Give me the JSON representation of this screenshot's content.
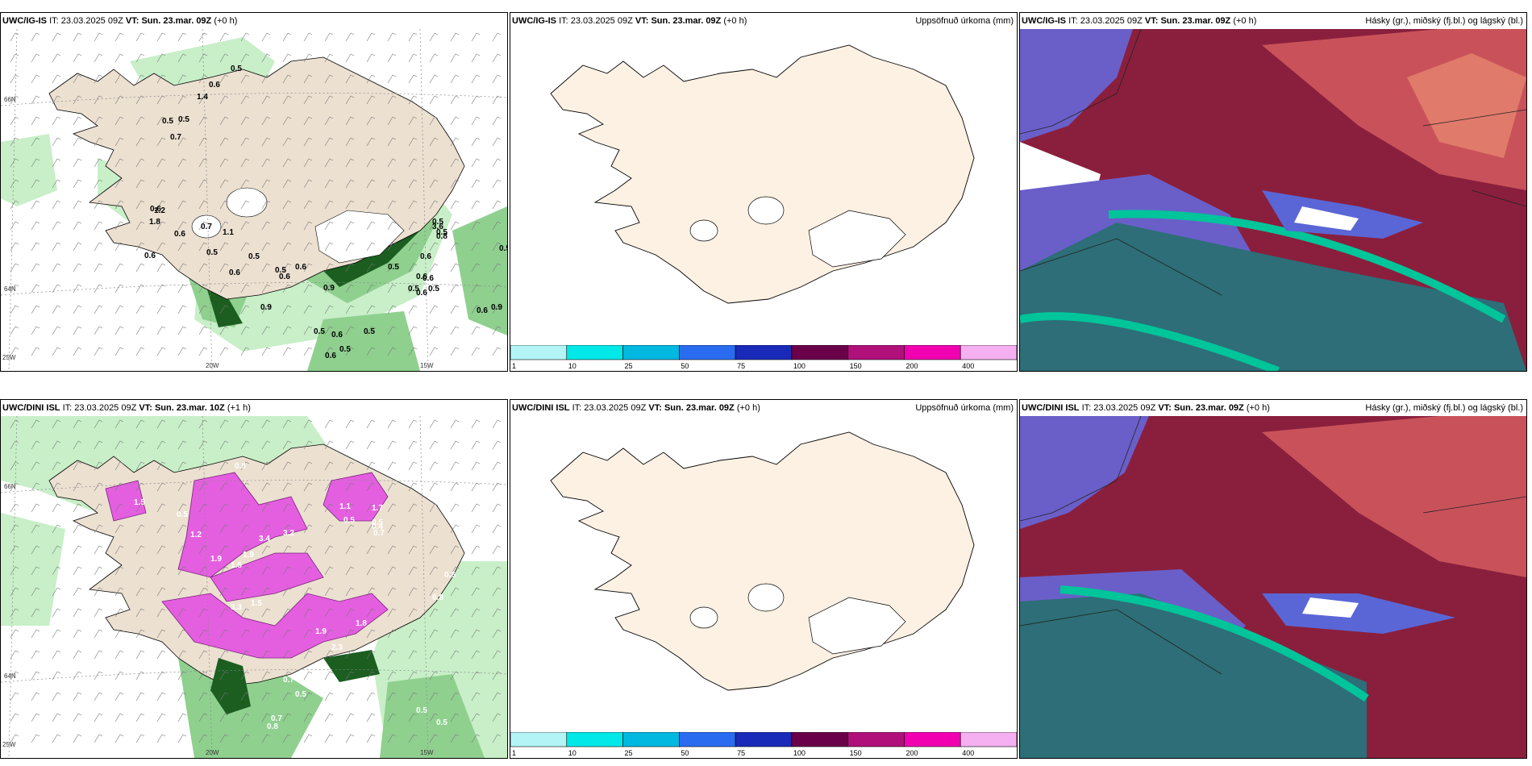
{
  "rows": [
    {
      "model": "UWC/IG-IS",
      "it_label": "IT:",
      "it_value": "23.03.2025 09Z",
      "vt_label": "VT:",
      "vt_value": "Sun. 23.mar. 09Z",
      "lead": "(+0 h)"
    },
    {
      "model": "UWC/DINI ISL",
      "it_label": "IT:",
      "it_value": "23.03.2025 09Z",
      "vt_label": "VT:",
      "vt_value": "Sun. 23.mar. 10Z",
      "lead": "(+1 h)",
      "lead_mid": "(+0 h)",
      "vt_value_mid": "Sun. 23.mar. 09Z"
    }
  ],
  "precip_title": "Uppsöfnuð úrkoma (mm)",
  "cloud_title": "Hásky (gr.), miðský (fj.bl.) og lágský (bl.)",
  "legend": {
    "ticks": [
      "1",
      "10",
      "25",
      "50",
      "75",
      "100",
      "150",
      "200",
      "400"
    ],
    "colors": [
      "#b3f5f7",
      "#00e8e8",
      "#00b8e0",
      "#2a6cf0",
      "#1a2ab8",
      "#6a004a",
      "#b0107a",
      "#f000b0",
      "#f4b0f0"
    ]
  },
  "grid_labels": {
    "lat66": "66N",
    "lat64": "64N",
    "lon20": "20W",
    "lon15": "15W",
    "lon25": "25W"
  },
  "top_values": [
    "0.5",
    "0.6",
    "1.4",
    "0.5",
    "0.5",
    "0.7",
    "1.2",
    "0.6",
    "1.8",
    "0.7",
    "1.1",
    "0.6",
    "0.6",
    "0.5",
    "0.6",
    "0.5",
    "0.9",
    "0.6",
    "0.5",
    "0.6",
    "0.9",
    "0.6",
    "0.5",
    "0.6",
    "0.5",
    "0.6",
    "0.5",
    "0.5",
    "0.6",
    "0.5",
    "3.6",
    "0.8",
    "0.5",
    "0.6",
    "0.9",
    "0.5",
    "0.6",
    "0.5",
    "0.6",
    "0.5"
  ],
  "bottom_values": [
    "0.8",
    "1.5",
    "0.5",
    "1.2",
    "3.4",
    "1.9",
    "3.2",
    "1.5",
    "1.9",
    "3.3",
    "1.5",
    "2.3",
    "1.9",
    "1.8",
    "1.1",
    "1.7",
    "0.5",
    "0.5",
    "0.7",
    "0.4",
    "0.6",
    "0.8",
    "0.7",
    "0.5",
    "0.5",
    "0.5",
    "0.7",
    "0.8"
  ]
}
